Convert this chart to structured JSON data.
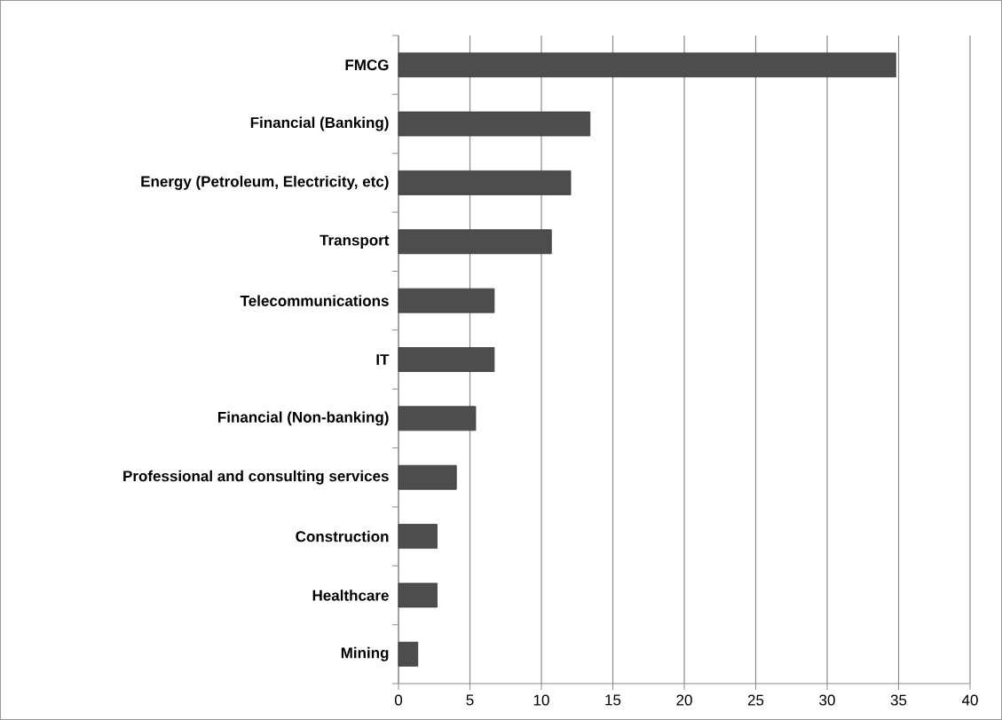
{
  "chart_data": {
    "type": "bar",
    "orientation": "horizontal",
    "categories": [
      "FMCG",
      "Financial (Banking)",
      "Energy (Petroleum, Electricity, etc)",
      "Transport",
      "Telecommunications",
      "IT",
      "Financial (Non-banking)",
      "Professional and consulting services",
      "Construction",
      "Healthcare",
      "Mining"
    ],
    "values": [
      34.8,
      13.4,
      12.05,
      10.7,
      6.7,
      6.7,
      5.4,
      4.05,
      2.7,
      2.7,
      1.35
    ],
    "color": "#4d4d4d",
    "xlim": [
      0,
      40
    ],
    "xticks": [
      0,
      5,
      10,
      15,
      20,
      25,
      30,
      35,
      40
    ],
    "grid": "x"
  }
}
